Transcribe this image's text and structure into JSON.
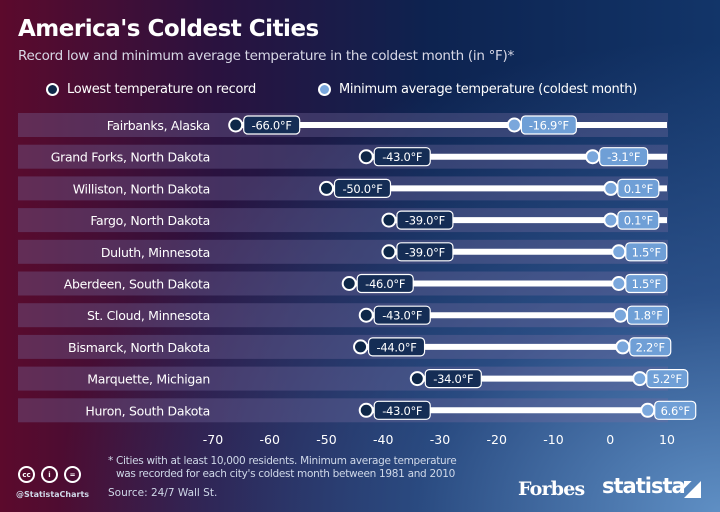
{
  "title": "America's Coldest Cities",
  "subtitle": "Record low and minimum average temperature in the coldest month (in °F)*",
  "legend": {
    "low": "Lowest temperature on record",
    "avg": "Minimum average temperature (coldest month)"
  },
  "colors": {
    "low_marker": "#0e2748",
    "avg_marker": "#7aa7dc",
    "bar": "#ffffff",
    "row_bg": "#5a4a78"
  },
  "footnote_line1": "* Cities with at least 10,000 residents. Minimum average temperature",
  "footnote_line2": "was recorded for each city's coldest month between 1981 and 2010",
  "source": "Source: 24/7 Wall St.",
  "handle": "@StatistaCharts",
  "logos": {
    "forbes": "Forbes",
    "statista": "statista"
  },
  "chart_data": {
    "type": "dumbbell",
    "xlim": [
      -70,
      10
    ],
    "xticks": [
      -70,
      -60,
      -50,
      -40,
      -30,
      -20,
      -10,
      0,
      10
    ],
    "categories": [
      "Fairbanks, Alaska",
      "Grand Forks, North Dakota",
      "Williston, North Dakota",
      "Fargo, North Dakota",
      "Duluth, Minnesota",
      "Aberdeen, South Dakota",
      "St. Cloud, Minnesota",
      "Bismarck, North Dakota",
      "Marquette, Michigan",
      "Huron, South Dakota"
    ],
    "series": [
      {
        "name": "Lowest temperature on record",
        "values": [
          -66.0,
          -43.0,
          -50.0,
          -39.0,
          -39.0,
          -46.0,
          -43.0,
          -44.0,
          -34.0,
          -43.0
        ]
      },
      {
        "name": "Minimum average temperature (coldest month)",
        "values": [
          -16.9,
          -3.1,
          0.1,
          0.1,
          1.5,
          1.5,
          1.8,
          2.2,
          5.2,
          6.6
        ]
      }
    ]
  }
}
